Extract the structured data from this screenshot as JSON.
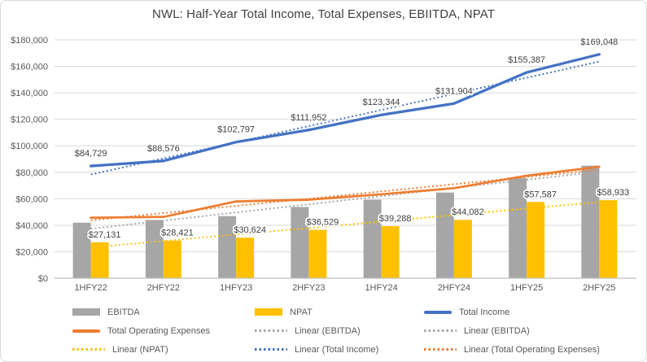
{
  "title": "NWL: Half-Year Total Income, Total Expenses, EBIITDA, NPAT",
  "chart_data": {
    "type": "combo-bar-line",
    "categories": [
      "1HFY22",
      "2HFY22",
      "1HFY23",
      "2HFY23",
      "1HFY24",
      "2HFY24",
      "1HFY25",
      "2HFY25"
    ],
    "y_axis": {
      "min": 0,
      "max": 180000,
      "step": 20000,
      "grid": true,
      "tick_labels": [
        "$0",
        "$20,000",
        "$40,000",
        "$60,000",
        "$80,000",
        "$100,000",
        "$120,000",
        "$140,000",
        "$160,000",
        "$180,000"
      ]
    },
    "series": [
      {
        "name": "EBITDA",
        "type": "bar",
        "color": "#A6A6A6",
        "values": [
          41900,
          44000,
          46900,
          53800,
          59300,
          64700,
          75700,
          85000
        ]
      },
      {
        "name": "NPAT",
        "type": "bar",
        "color": "#FFC000",
        "values": [
          27131,
          28421,
          30624,
          36529,
          39288,
          44082,
          57587,
          58933
        ],
        "value_labels": [
          "$27,131",
          "$28,421",
          "$30,624",
          "$36,529",
          "$39,288",
          "$44,082",
          "$57,587",
          "$58,933"
        ]
      },
      {
        "name": "Total Income",
        "type": "line",
        "color": "#4472C4",
        "values": [
          84729,
          88576,
          102797,
          111952,
          123344,
          131904,
          155387,
          169048
        ],
        "value_labels": [
          "$84,729",
          "$88,576",
          "$102,797",
          "$111,952",
          "$123,344",
          "$131,904",
          "$155,387",
          "$169,048"
        ]
      },
      {
        "name": "Total Operating Expenses",
        "type": "line",
        "color": "#ED7D31",
        "values": [
          45700,
          46300,
          58000,
          59300,
          63400,
          68000,
          77400,
          84200
        ]
      }
    ],
    "trendlines": [
      {
        "name": "Linear (EBITDA)",
        "color": "#A6A6A6",
        "start": 37300,
        "end": 80500
      },
      {
        "name": "Linear (NPAT)",
        "color": "#FFC000",
        "start": 23200,
        "end": 57500
      },
      {
        "name": "Linear (Total Operating Expenses)",
        "color": "#ED7D31",
        "start": 43700,
        "end": 81900
      },
      {
        "name": "Linear (Total Income)",
        "color": "#4472C4",
        "start": 78300,
        "end": 163600
      }
    ],
    "legend_position": "bottom"
  },
  "legend": {
    "items": [
      {
        "label": "EBITDA",
        "swatch": "bar",
        "color": "#A6A6A6"
      },
      {
        "label": "NPAT",
        "swatch": "bar",
        "color": "#FFC000"
      },
      {
        "label": "Total Income",
        "swatch": "line",
        "color": "#4472C4"
      },
      {
        "label": "Total Operating Expenses",
        "swatch": "line",
        "color": "#ED7D31"
      },
      {
        "label": "Linear (EBITDA)",
        "swatch": "dotted",
        "color": "#A6A6A6"
      },
      {
        "label": "Linear (EBITDA)",
        "swatch": "dotted",
        "color": "#A6A6A6"
      },
      {
        "label": "Linear (NPAT)",
        "swatch": "dotted",
        "color": "#FFC000"
      },
      {
        "label": "Linear (Total Income)",
        "swatch": "dotted",
        "color": "#4472C4"
      },
      {
        "label": "Linear (Total Operating Expenses)",
        "swatch": "dotted",
        "color": "#ED7D31"
      }
    ]
  },
  "colors": {
    "background": "#FFFFFF",
    "frame_border": "#D9D9D9",
    "gridline": "#D9D9D9",
    "axis_line": "#BFBFBF",
    "title_text": "#404040",
    "axis_text": "#595959",
    "data_label_text": "#404040"
  }
}
